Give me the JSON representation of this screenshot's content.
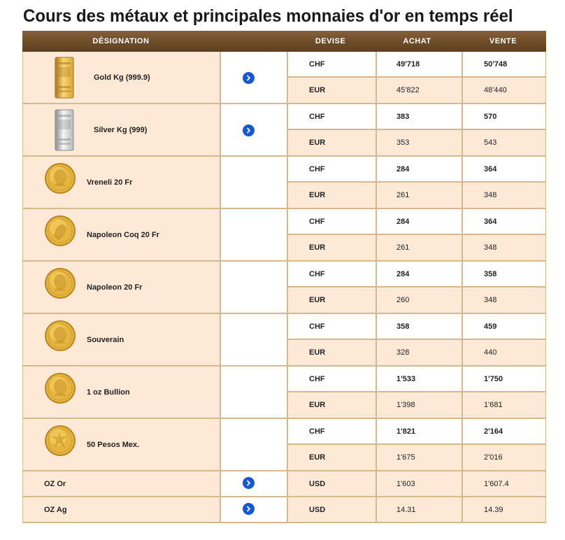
{
  "title": "Cours des métaux et principales monnaies d'or en temps réel",
  "headers": {
    "designation": "DÉSIGNATION",
    "devise": "DEVISE",
    "achat": "ACHAT",
    "vente": "VENTE"
  },
  "items": [
    {
      "name": "Gold Kg (999.9)",
      "icon": "gold-bar-icon",
      "link": true,
      "quotes": [
        {
          "currency": "CHF",
          "buy": "49'718",
          "sell": "50'748"
        },
        {
          "currency": "EUR",
          "buy": "45'822",
          "sell": "48'440"
        }
      ]
    },
    {
      "name": "Silver Kg (999)",
      "icon": "silver-bar-icon",
      "link": true,
      "quotes": [
        {
          "currency": "CHF",
          "buy": "383",
          "sell": "570"
        },
        {
          "currency": "EUR",
          "buy": "353",
          "sell": "543"
        }
      ]
    },
    {
      "name": "Vreneli 20 Fr",
      "icon": "vreneli-coin-icon",
      "link": false,
      "quotes": [
        {
          "currency": "CHF",
          "buy": "284",
          "sell": "364"
        },
        {
          "currency": "EUR",
          "buy": "261",
          "sell": "348"
        }
      ]
    },
    {
      "name": "Napoleon Coq 20 Fr",
      "icon": "napoleon-coq-coin-icon",
      "link": false,
      "quotes": [
        {
          "currency": "CHF",
          "buy": "284",
          "sell": "364"
        },
        {
          "currency": "EUR",
          "buy": "261",
          "sell": "348"
        }
      ]
    },
    {
      "name": "Napoleon 20 Fr",
      "icon": "napoleon-coin-icon",
      "link": false,
      "quotes": [
        {
          "currency": "CHF",
          "buy": "284",
          "sell": "358"
        },
        {
          "currency": "EUR",
          "buy": "260",
          "sell": "348"
        }
      ]
    },
    {
      "name": "Souverain",
      "icon": "souverain-coin-icon",
      "link": false,
      "quotes": [
        {
          "currency": "CHF",
          "buy": "358",
          "sell": "459"
        },
        {
          "currency": "EUR",
          "buy": "328",
          "sell": "440"
        }
      ]
    },
    {
      "name": "1 oz Bullion",
      "icon": "bullion-coin-icon",
      "link": false,
      "quotes": [
        {
          "currency": "CHF",
          "buy": "1'533",
          "sell": "1'750"
        },
        {
          "currency": "EUR",
          "buy": "1'398",
          "sell": "1'681"
        }
      ]
    },
    {
      "name": "50 Pesos Mex.",
      "icon": "pesos-coin-icon",
      "link": false,
      "quotes": [
        {
          "currency": "CHF",
          "buy": "1'821",
          "sell": "2'164"
        },
        {
          "currency": "EUR",
          "buy": "1'675",
          "sell": "2'016"
        }
      ]
    }
  ],
  "ounces": [
    {
      "name": "OZ Or",
      "currency": "USD",
      "buy": "1'603",
      "sell": "1'607.4",
      "link": true
    },
    {
      "name": "OZ Ag",
      "currency": "USD",
      "buy": "14.31",
      "sell": "14.39",
      "link": true
    }
  ],
  "colors": {
    "header": "#6e4c29",
    "row_tint": "#fde9d6",
    "border": "#d6b890",
    "link_button": "#1457d9"
  }
}
